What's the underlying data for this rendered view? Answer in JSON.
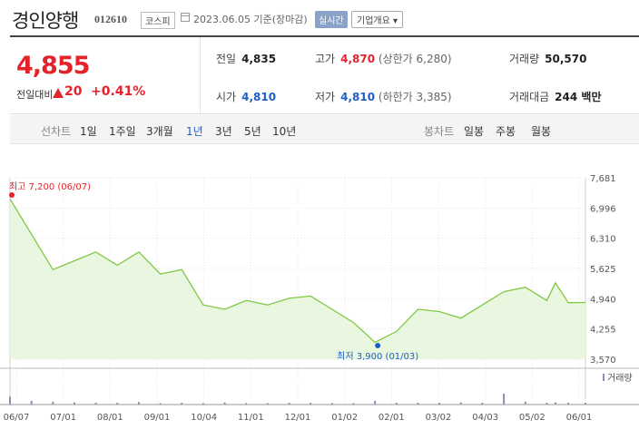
{
  "header": {
    "name": "경인양행",
    "code": "012610",
    "market": "코스피",
    "date": "2023.06.05 기준(장마감)",
    "realtime": "실시간",
    "company_info": "기업개요"
  },
  "price": {
    "current": "4,855",
    "change_label": "전일대비",
    "change": "20",
    "change_pct": "+0.41%"
  },
  "stats": {
    "prev_close": {
      "label": "전일",
      "value": "4,835"
    },
    "high": {
      "label": "고가",
      "value": "4,870",
      "sub": "(상한가 6,280)"
    },
    "volume": {
      "label": "거래량",
      "value": "50,570"
    },
    "open": {
      "label": "시가",
      "value": "4,810"
    },
    "low": {
      "label": "저가",
      "value": "4,810",
      "sub": "(하한가 3,385)"
    },
    "trade_value": {
      "label": "거래대금",
      "value": "244 백만"
    }
  },
  "tabs": {
    "line_label": "선차트",
    "line_periods": [
      "1일",
      "1주일",
      "3개월",
      "1년",
      "3년",
      "5년",
      "10년"
    ],
    "active_period": "1년",
    "candle_label": "봉차트",
    "candle_periods": [
      "일봉",
      "주봉",
      "월봉"
    ]
  },
  "chart_data": {
    "type": "area",
    "y_ticks": [
      "7,681",
      "6,996",
      "6,310",
      "5,625",
      "4,940",
      "4,255",
      "3,570"
    ],
    "ylim": [
      3570,
      7681
    ],
    "x_ticks": [
      "06/07",
      "07/01",
      "08/01",
      "09/01",
      "10/04",
      "11/01",
      "12/01",
      "01/02",
      "02/01",
      "03/02",
      "04/03",
      "05/02",
      "06/01"
    ],
    "high_label": "최고 7,200 (06/07)",
    "low_label": "최저 3,900 (01/03)",
    "volume_legend": "거래량",
    "colors": {
      "line": "#7ec843",
      "fill": "#eaf7e0",
      "volume": "#8a8fb8",
      "high": "#e5222a",
      "low": "#1d5fc4"
    },
    "x": [
      0,
      0.5,
      1,
      1.5,
      2,
      2.5,
      3,
      3.5,
      4,
      4.5,
      5,
      5.5,
      6,
      6.5,
      7,
      7.5,
      8,
      8.5,
      9,
      9.5,
      10,
      10.5,
      11,
      11.5,
      12,
      12.5,
      12.7,
      13.0,
      13.4
    ],
    "values": [
      7200,
      6400,
      5600,
      5800,
      6000,
      5700,
      6000,
      5500,
      5600,
      4800,
      4700,
      4900,
      4800,
      4950,
      5000,
      4700,
      4400,
      3950,
      4200,
      4700,
      4650,
      4500,
      4800,
      5100,
      5200,
      4900,
      5300,
      4850,
      4855
    ],
    "volume": [
      0.22,
      0.1,
      0.08,
      0.06,
      0.05,
      0.05,
      0.07,
      0.04,
      0.05,
      0.04,
      0.06,
      0.04,
      0.04,
      0.05,
      0.05,
      0.04,
      0.04,
      0.1,
      0.05,
      0.05,
      0.05,
      0.06,
      0.05,
      0.3,
      0.08,
      0.05,
      0.06,
      0.05,
      0.05
    ]
  }
}
